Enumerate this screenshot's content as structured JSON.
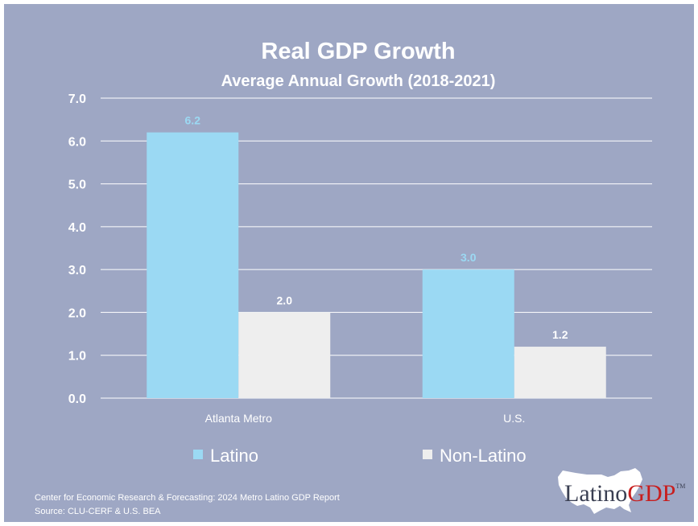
{
  "chart_data": {
    "type": "bar",
    "title": "Real GDP Growth",
    "subtitle": "Average Annual Growth (2018-2021)",
    "categories": [
      "Atlanta Metro",
      "U.S."
    ],
    "series": [
      {
        "name": "Latino",
        "values": [
          6.2,
          3.0
        ],
        "color": "#9bd9f3",
        "label_color": "#9bd9f3"
      },
      {
        "name": "Non-Latino",
        "values": [
          2.0,
          1.2
        ],
        "color": "#eeeeee",
        "label_color": "#ffffff"
      }
    ],
    "ylim": [
      0,
      7
    ],
    "yticks": [
      "0.0",
      "1.0",
      "2.0",
      "3.0",
      "4.0",
      "5.0",
      "6.0",
      "7.0"
    ],
    "value_labels": [
      [
        "6.2",
        "3.0"
      ],
      [
        "2.0",
        "1.2"
      ]
    ],
    "grid": true,
    "legend_position": "bottom",
    "gridline_color": "#ffffff",
    "background_color": "#9ea7c4"
  },
  "footer": {
    "line1": "Center for Economic Research & Forecasting: 2024 Metro Latino GDP Report",
    "line2": "Source: CLU-CERF & U.S. BEA"
  },
  "logo": {
    "text_part1": "Latino",
    "text_part2": "GDP",
    "trademark": "TM",
    "color_part1": "#3a3f52",
    "color_part2": "#c81e1e"
  }
}
